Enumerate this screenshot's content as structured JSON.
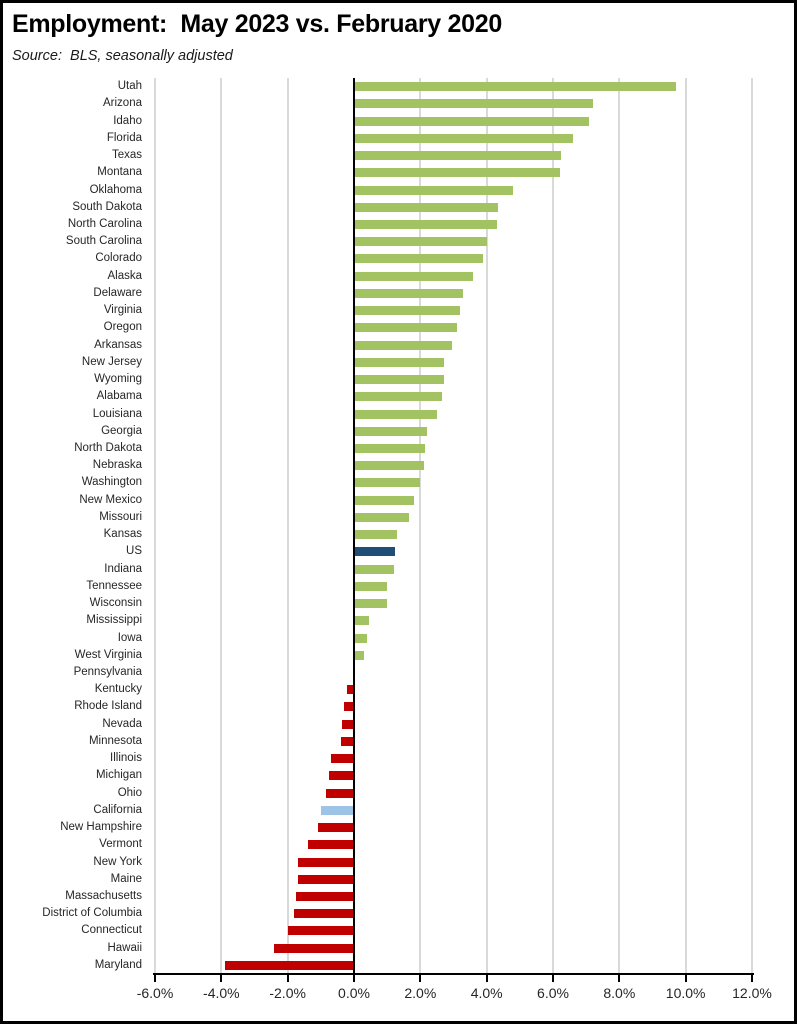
{
  "header": {
    "title": "Employment:  May 2023 vs. February 2020",
    "source": "Source:  BLS, seasonally adjusted"
  },
  "chart_data": {
    "type": "bar",
    "orientation": "horizontal",
    "title": "Employment:  May 2023 vs. February 2020",
    "source": "Source:  BLS, seasonally adjusted",
    "value_unit": "percent change in employment",
    "xlim": [
      -6,
      12
    ],
    "grid": true,
    "zero_axis": "black vertical line",
    "x_ticks": [
      {
        "value": -6,
        "label": "-6.0%"
      },
      {
        "value": -4,
        "label": "-4.0%"
      },
      {
        "value": -2,
        "label": "-2.0%"
      },
      {
        "value": 0,
        "label": "0.0%"
      },
      {
        "value": 2,
        "label": "2.0%"
      },
      {
        "value": 4,
        "label": "4.0%"
      },
      {
        "value": 6,
        "label": "6.0%"
      },
      {
        "value": 8,
        "label": "8.0%"
      },
      {
        "value": 10,
        "label": "10.0%"
      },
      {
        "value": 12,
        "label": "12.0%"
      }
    ],
    "colors": {
      "positive": "#A3C262",
      "negative": "#C00000",
      "us": "#1F4E79",
      "california": "#9DC3E6",
      "gridline": "#D9D9D9",
      "axis": "#000000"
    },
    "items": [
      {
        "label": "Utah",
        "value": 9.7,
        "color": "positive"
      },
      {
        "label": "Arizona",
        "value": 7.2,
        "color": "positive"
      },
      {
        "label": "Idaho",
        "value": 7.1,
        "color": "positive"
      },
      {
        "label": "Florida",
        "value": 6.6,
        "color": "positive"
      },
      {
        "label": "Texas",
        "value": 6.25,
        "color": "positive"
      },
      {
        "label": "Montana",
        "value": 6.2,
        "color": "positive"
      },
      {
        "label": "Oklahoma",
        "value": 4.8,
        "color": "positive"
      },
      {
        "label": "South Dakota",
        "value": 4.35,
        "color": "positive"
      },
      {
        "label": "North Carolina",
        "value": 4.3,
        "color": "positive"
      },
      {
        "label": "South Carolina",
        "value": 4.0,
        "color": "positive"
      },
      {
        "label": "Colorado",
        "value": 3.9,
        "color": "positive"
      },
      {
        "label": "Alaska",
        "value": 3.6,
        "color": "positive"
      },
      {
        "label": "Delaware",
        "value": 3.3,
        "color": "positive"
      },
      {
        "label": "Virginia",
        "value": 3.2,
        "color": "positive"
      },
      {
        "label": "Oregon",
        "value": 3.1,
        "color": "positive"
      },
      {
        "label": "Arkansas",
        "value": 2.95,
        "color": "positive"
      },
      {
        "label": "New Jersey",
        "value": 2.7,
        "color": "positive"
      },
      {
        "label": "Wyoming",
        "value": 2.7,
        "color": "positive"
      },
      {
        "label": "Alabama",
        "value": 2.65,
        "color": "positive"
      },
      {
        "label": "Louisiana",
        "value": 2.5,
        "color": "positive"
      },
      {
        "label": "Georgia",
        "value": 2.2,
        "color": "positive"
      },
      {
        "label": "North Dakota",
        "value": 2.15,
        "color": "positive"
      },
      {
        "label": "Nebraska",
        "value": 2.1,
        "color": "positive"
      },
      {
        "label": "Washington",
        "value": 2.0,
        "color": "positive"
      },
      {
        "label": "New Mexico",
        "value": 1.8,
        "color": "positive"
      },
      {
        "label": "Missouri",
        "value": 1.65,
        "color": "positive"
      },
      {
        "label": "Kansas",
        "value": 1.3,
        "color": "positive"
      },
      {
        "label": "US",
        "value": 1.25,
        "color": "us"
      },
      {
        "label": "Indiana",
        "value": 1.2,
        "color": "positive"
      },
      {
        "label": "Tennessee",
        "value": 1.0,
        "color": "positive"
      },
      {
        "label": "Wisconsin",
        "value": 1.0,
        "color": "positive"
      },
      {
        "label": "Mississippi",
        "value": 0.45,
        "color": "positive"
      },
      {
        "label": "Iowa",
        "value": 0.4,
        "color": "positive"
      },
      {
        "label": "West Virginia",
        "value": 0.3,
        "color": "positive"
      },
      {
        "label": "Pennsylvania",
        "value": 0.0,
        "color": "positive"
      },
      {
        "label": "Kentucky",
        "value": -0.2,
        "color": "negative"
      },
      {
        "label": "Rhode Island",
        "value": -0.3,
        "color": "negative"
      },
      {
        "label": "Nevada",
        "value": -0.35,
        "color": "negative"
      },
      {
        "label": "Minnesota",
        "value": -0.4,
        "color": "negative"
      },
      {
        "label": "Illinois",
        "value": -0.7,
        "color": "negative"
      },
      {
        "label": "Michigan",
        "value": -0.75,
        "color": "negative"
      },
      {
        "label": "Ohio",
        "value": -0.85,
        "color": "negative"
      },
      {
        "label": "California",
        "value": -1.0,
        "color": "california"
      },
      {
        "label": "New Hampshire",
        "value": -1.1,
        "color": "negative"
      },
      {
        "label": "Vermont",
        "value": -1.4,
        "color": "negative"
      },
      {
        "label": "New York",
        "value": -1.7,
        "color": "negative"
      },
      {
        "label": "Maine",
        "value": -1.7,
        "color": "negative"
      },
      {
        "label": "Massachusetts",
        "value": -1.75,
        "color": "negative"
      },
      {
        "label": "District of Columbia",
        "value": -1.8,
        "color": "negative"
      },
      {
        "label": "Connecticut",
        "value": -2.0,
        "color": "negative"
      },
      {
        "label": "Hawaii",
        "value": -2.4,
        "color": "negative"
      },
      {
        "label": "Maryland",
        "value": -3.9,
        "color": "negative"
      }
    ]
  }
}
